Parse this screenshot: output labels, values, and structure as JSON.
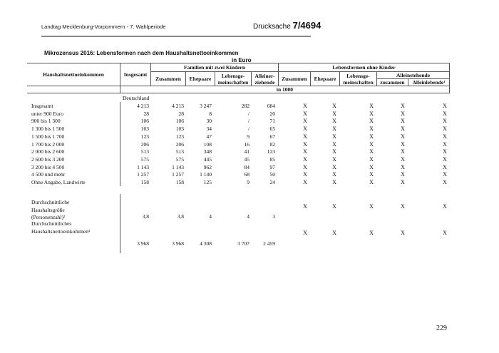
{
  "header": {
    "left": "Landtag Mecklenburg-Vorpommern - 7. Wahlperiode",
    "right_prefix": "Drucksache",
    "right_number": "7/4694"
  },
  "title": "Mikrozensus 2016: Lebensformen nach dem Haushaltsnettoeinkommen",
  "unit": "in Euro",
  "columns": {
    "row_label": "Haushaltsnettoeinkommen",
    "total": "Insgesamt",
    "group1": "Familien mit zwei Kindern",
    "g1": [
      "Zusammen",
      "Ehepaare",
      "Lebensge-meinschaften",
      "Alleiner-ziehende"
    ],
    "group2": "Lebensformen ohne Kinder",
    "g2": [
      "Zusammen",
      "Ehepaare",
      "Lebensge-meinschaften"
    ],
    "group3": "Alleinstehende",
    "g3": [
      "zusammen",
      "Alleinlebende¹"
    ],
    "unit_row": "in 1000"
  },
  "region": "Deutschland",
  "rows": [
    {
      "label": "Insgesamt",
      "v": [
        "4 213",
        "4 213",
        "3 247",
        "282",
        "684"
      ]
    },
    {
      "label": "unter 900 Euro",
      "v": [
        "28",
        "28",
        "8",
        "/",
        "20"
      ]
    },
    {
      "label": "900 bis 1 300",
      "v": [
        "106",
        "106",
        "30",
        "/",
        "71"
      ]
    },
    {
      "label": "1 300 bis 1 500",
      "v": [
        "103",
        "103",
        "34",
        "/",
        "65"
      ]
    },
    {
      "label": "1 500 bis 1 700",
      "v": [
        "123",
        "123",
        "47",
        "9",
        "67"
      ]
    },
    {
      "label": "1 700 bis 2 000",
      "v": [
        "206",
        "206",
        "108",
        "16",
        "82"
      ]
    },
    {
      "label": "2 000 bis 2 600",
      "v": [
        "513",
        "513",
        "348",
        "41",
        "123"
      ]
    },
    {
      "label": "2 600 bis 3 200",
      "v": [
        "575",
        "575",
        "445",
        "45",
        "85"
      ]
    },
    {
      "label": "3 200 bis 4 500",
      "v": [
        "1 143",
        "1 143",
        "962",
        "84",
        "97"
      ]
    },
    {
      "label": "4 500 und mehr",
      "v": [
        "1 257",
        "1 257",
        "1 140",
        "68",
        "50"
      ]
    },
    {
      "label": "Ohne Angabe, Landwirte",
      "v": [
        "158",
        "158",
        "125",
        "9",
        "24"
      ]
    }
  ],
  "x_mark": "X",
  "avg_size": {
    "label_lines": [
      "Durchschnittliche",
      "Haushaltsgröße",
      "(Personenzahl)²"
    ],
    "v": [
      "3,8",
      "3,8",
      "4",
      "4",
      "3"
    ]
  },
  "avg_income": {
    "label_lines": [
      "Durchschnittliches",
      "Haushaltsnettoeinkommen³"
    ],
    "v": [
      "3 968",
      "3 968",
      "4 308",
      "3 707",
      "2 459"
    ]
  },
  "page_number": "229"
}
